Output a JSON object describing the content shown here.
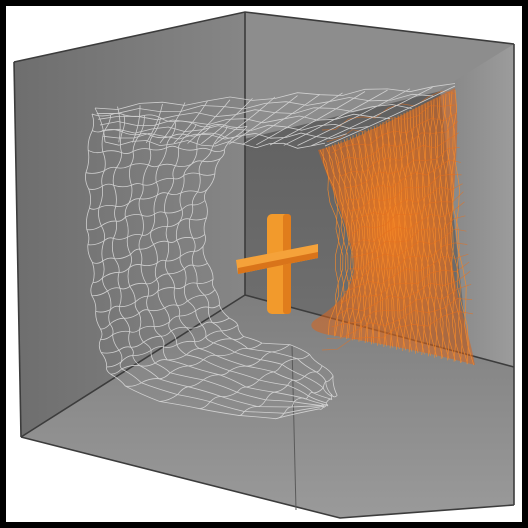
{
  "scene": {
    "frame_color": "#000000",
    "page_color": "#ffffff",
    "wall_back_color": "#6a6a6a",
    "wall_left_color": "#7c7c7c",
    "wall_right_color": "#8e8e8e",
    "wall_top_color": "#9a9a9a",
    "floor_color": "#8b8b8b",
    "mesh_color": "#d4d4d4",
    "accent_color": "#f39a2e",
    "accent_dark_color": "#d8641c"
  }
}
